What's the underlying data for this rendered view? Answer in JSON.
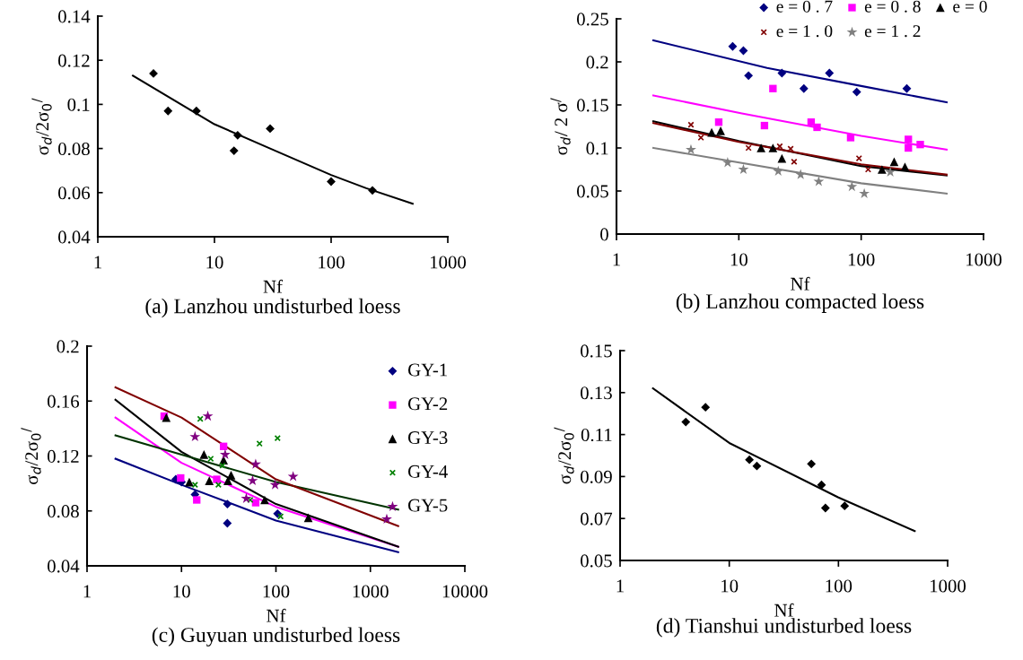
{
  "chart_data": [
    {
      "type": "scatter",
      "title": "(a) Lanzhou undisturbed loess",
      "xlabel": "Nf",
      "ylabel": "σ$_{d}$/2σ$_{0}$$^{/}$",
      "log": "x",
      "grid": false,
      "legend": false,
      "xlim": [
        1,
        1000
      ],
      "xticks": [
        1,
        10,
        100,
        1000
      ],
      "ylim": [
        0.04,
        0.14
      ],
      "yticks": [
        0.04,
        0.06,
        0.08,
        0.1,
        0.12,
        0.14
      ],
      "series": [
        {
          "color": "#000000",
          "marker": "diamond",
          "x": [
            3,
            4,
            7,
            14.7,
            15.8,
            30,
            100,
            226
          ],
          "values": [
            0.114,
            0.097,
            0.097,
            0.079,
            0.086,
            0.089,
            0.065,
            0.061
          ]
        },
        {
          "type": "line",
          "color": "#000000",
          "marker": "none",
          "x": [
            2,
            10,
            30,
            100,
            200,
            500
          ],
          "values": [
            0.113,
            0.091,
            0.08,
            0.068,
            0.062,
            0.055
          ]
        }
      ]
    },
    {
      "type": "scatter",
      "title": "(b) Lanzhou compacted loess",
      "xlabel": "Nf",
      "ylabel": "σ$_{d}$/ 2 σ$^{/}$",
      "log": "x",
      "grid": false,
      "legend": "top right",
      "xlim": [
        1,
        1000
      ],
      "xticks": [
        1,
        10,
        100,
        1000
      ],
      "ylim": [
        0,
        0.25
      ],
      "yticks": [
        0,
        0.05,
        0.1,
        0.15,
        0.2,
        0.25
      ],
      "series": [
        {
          "name": "e = 0 . 7",
          "color": "#000080",
          "marker": "diamond",
          "x": [
            8.9,
            10.9,
            12,
            22.5,
            34,
            55,
            92,
            236
          ],
          "values": [
            0.218,
            0.213,
            0.184,
            0.187,
            0.169,
            0.187,
            0.165,
            0.169
          ]
        },
        {
          "name": "e = 0 . 8",
          "color": "#ff00ff",
          "marker": "square",
          "x": [
            6.85,
            16.2,
            19,
            39,
            43.6,
            82,
            243,
            243,
            304
          ],
          "values": [
            0.13,
            0.126,
            0.169,
            0.13,
            0.124,
            0.112,
            0.11,
            0.1,
            0.104
          ]
        },
        {
          "name": "e = 0",
          "color": "#000000",
          "marker": "triangle",
          "x": [
            6,
            7.1,
            15.2,
            19,
            22.5,
            148,
            186,
            228
          ],
          "values": [
            0.118,
            0.12,
            0.1,
            0.1,
            0.088,
            0.075,
            0.084,
            0.078
          ]
        },
        {
          "name": "e = 1 . 0",
          "color": "#800000",
          "marker": "cross",
          "x": [
            4.06,
            4.9,
            12,
            21.6,
            26.5,
            28.3,
            96,
            114
          ],
          "values": [
            0.127,
            0.112,
            0.1,
            0.102,
            0.099,
            0.084,
            0.088,
            0.075
          ]
        },
        {
          "name": "e = 1 . 2",
          "color": "#808080",
          "marker": "star",
          "x": [
            4.06,
            8.1,
            10.9,
            21,
            32,
            45,
            84,
            106,
            173
          ],
          "values": [
            0.098,
            0.083,
            0.075,
            0.073,
            0.069,
            0.061,
            0.055,
            0.047,
            0.072
          ]
        },
        {
          "type": "line",
          "color": "#000080",
          "marker": "none",
          "x": [
            2,
            17,
            100,
            500
          ],
          "values": [
            0.225,
            0.193,
            0.172,
            0.153
          ]
        },
        {
          "type": "line",
          "color": "#ff00ff",
          "marker": "none",
          "x": [
            2,
            10.6,
            100,
            500
          ],
          "values": [
            0.161,
            0.14,
            0.114,
            0.098
          ]
        },
        {
          "type": "line",
          "color": "#000000",
          "marker": "none",
          "x": [
            2,
            10,
            100,
            500
          ],
          "values": [
            0.131,
            0.108,
            0.079,
            0.068
          ]
        },
        {
          "type": "line",
          "color": "#800000",
          "marker": "none",
          "x": [
            2,
            10,
            100,
            500
          ],
          "values": [
            0.129,
            0.107,
            0.081,
            0.069
          ]
        },
        {
          "type": "line",
          "color": "#808080",
          "marker": "none",
          "x": [
            2,
            100,
            500
          ],
          "values": [
            0.1,
            0.059,
            0.047
          ]
        }
      ]
    },
    {
      "type": "scatter",
      "title": "(c) Guyuan undisturbed loess",
      "xlabel": "Nf",
      "ylabel": "σ$_{d}$/2σ$_{0}$$^{/}$",
      "log": "x",
      "grid": false,
      "legend": "top right",
      "xlim": [
        1,
        10000
      ],
      "xticks": [
        1,
        10,
        100,
        1000,
        10000
      ],
      "ylim": [
        0.04,
        0.2
      ],
      "yticks": [
        0.04,
        0.08,
        0.12,
        0.16,
        0.2
      ],
      "series": [
        {
          "name": "GY-1",
          "color": "#000080",
          "marker": "diamond",
          "x": [
            8.7,
            10,
            13.9,
            30.6,
            30.6,
            104
          ],
          "values": [
            0.103,
            0.101,
            0.092,
            0.085,
            0.071,
            0.078
          ]
        },
        {
          "name": "GY-2",
          "color": "#ff00ff",
          "marker": "square",
          "x": [
            6.56,
            9.8,
            14.5,
            27.9,
            23.6,
            61
          ],
          "values": [
            0.149,
            0.104,
            0.088,
            0.127,
            0.103,
            0.086
          ]
        },
        {
          "name": "GY-3",
          "color": "#000000",
          "marker": "triangle",
          "x": [
            6.9,
            12.1,
            17.3,
            19.7,
            27.9,
            31,
            33.5,
            76,
            220
          ],
          "values": [
            0.148,
            0.101,
            0.121,
            0.102,
            0.117,
            0.102,
            0.106,
            0.088,
            0.075
          ]
        },
        {
          "name": "GY-4",
          "color": "#008000",
          "marker": "cross",
          "x": [
            13.9,
            15.8,
            20.4,
            24.6,
            27.2,
            53.5,
            67,
            104,
            112
          ],
          "values": [
            0.099,
            0.147,
            0.118,
            0.099,
            0.113,
            0.088,
            0.129,
            0.133,
            0.076
          ]
        },
        {
          "name": "GY-5",
          "color": "#800080",
          "marker": "star",
          "x": [
            13.9,
            19,
            29,
            48.5,
            56.6,
            61,
            98,
            152,
            1490
          ],
          "values": [
            0.134,
            0.149,
            0.121,
            0.089,
            0.102,
            0.114,
            0.099,
            0.105,
            0.074
          ]
        },
        {
          "type": "line",
          "color": "#000080",
          "marker": "none",
          "x": [
            2,
            10,
            100,
            1970
          ],
          "values": [
            0.118,
            0.099,
            0.073,
            0.05
          ]
        },
        {
          "type": "line",
          "color": "#ff00ff",
          "marker": "none",
          "x": [
            2,
            10,
            100,
            1970
          ],
          "values": [
            0.148,
            0.115,
            0.083,
            0.054
          ]
        },
        {
          "type": "line",
          "color": "#000000",
          "marker": "none",
          "x": [
            2,
            10,
            100,
            1970
          ],
          "values": [
            0.161,
            0.123,
            0.085,
            0.054
          ]
        },
        {
          "type": "line",
          "color": "#003300",
          "marker": "none",
          "x": [
            2,
            100,
            1970
          ],
          "values": [
            0.135,
            0.101,
            0.081
          ]
        },
        {
          "type": "line",
          "color": "#800000",
          "marker": "none",
          "x": [
            2,
            10,
            100,
            1970
          ],
          "values": [
            0.17,
            0.148,
            0.103,
            0.069
          ]
        }
      ]
    },
    {
      "type": "scatter",
      "title": "(d) Tianshui undisturbed loess",
      "xlabel": "Nf",
      "ylabel": "σ$_{d}$/2σ$_{0}$$^{/}$",
      "log": "x",
      "grid": false,
      "legend": false,
      "xlim": [
        1,
        1000
      ],
      "xticks": [
        1,
        10,
        100,
        1000
      ],
      "ylim": [
        0.05,
        0.15
      ],
      "yticks": [
        0.05,
        0.07,
        0.09,
        0.11,
        0.13,
        0.15
      ],
      "series": [
        {
          "color": "#000000",
          "marker": "diamond",
          "x": [
            4,
            6.06,
            15.3,
            17.9,
            56.5,
            70,
            76,
            114
          ],
          "values": [
            0.116,
            0.123,
            0.098,
            0.095,
            0.096,
            0.086,
            0.075,
            0.076
          ]
        },
        {
          "type": "line",
          "color": "#000000",
          "marker": "none",
          "x": [
            2,
            10,
            100,
            500
          ],
          "values": [
            0.132,
            0.106,
            0.08,
            0.064
          ]
        }
      ]
    }
  ]
}
